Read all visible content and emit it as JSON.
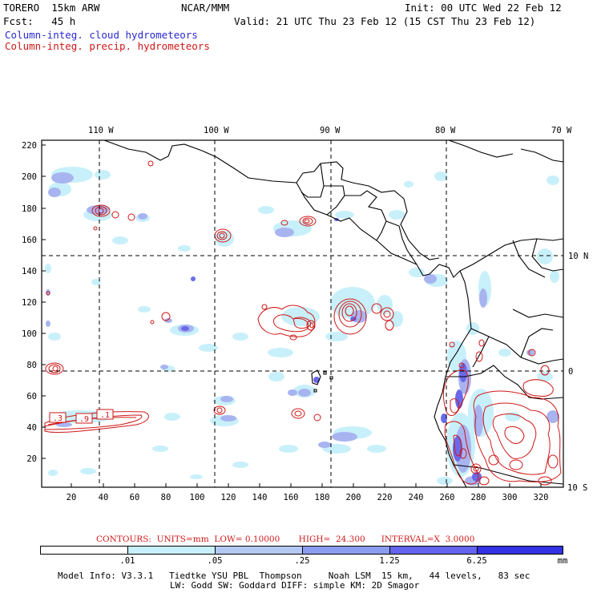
{
  "header": {
    "model": "TORERO  15km ARW",
    "center": "NCAR/MMM",
    "init": "Init: 00 UTC Wed 22 Feb 12",
    "fcst": "Fcst:   45 h",
    "valid": "Valid: 21 UTC Thu 23 Feb 12 (15 CST Thu 23 Feb 12)",
    "field_cloud": "Column-integ. cloud hydrometeors",
    "field_precip": "Column-integ. precip. hydrometeors"
  },
  "map": {
    "top_lon_labels": [
      "110 W",
      "100 W",
      "90 W",
      "80 W",
      "70 W"
    ],
    "right_lat_labels": [
      "10 N",
      "0",
      "10 S"
    ],
    "y_ticks": [
      "220",
      "200",
      "180",
      "160",
      "140",
      "120",
      "100",
      "80",
      "60",
      "40",
      "20"
    ],
    "x_ticks": [
      "20",
      "40",
      "60",
      "80",
      "100",
      "120",
      "140",
      "160",
      "180",
      "200",
      "220",
      "240",
      "260",
      "280",
      "300",
      "320"
    ],
    "contour_labels": [
      ".3",
      ".9",
      ".1"
    ],
    "colors": {
      "land_line": "#000000",
      "grid_dash": "#000000",
      "precip_contour": "#d01818",
      "cloud_light": "#c8f0fa",
      "cloud_mid": "#a8b4f0",
      "cloud_dark": "#6a6ae8"
    }
  },
  "footer": {
    "contours_line": "CONTOURS:  UNITS=mm  LOW= 0.10000       HIGH=  24.300      INTERVAL=X  3.0000",
    "colorbar_labels": [
      ".01",
      ".05",
      ".25",
      "1.25",
      "6.25"
    ],
    "colorbar_unit": "mm",
    "colorbar_colors": [
      "#ffffff",
      "#c8f0fa",
      "#b4c8f4",
      "#8c9cf0",
      "#6464ec",
      "#3232e4",
      "#1414dc"
    ],
    "info_line1": "Model Info: V3.3.1   Tiedtke YSU PBL  Thompson     Noah LSM  15 km,   44 levels,   83 sec",
    "info_line2": "LW: Godd SW: Goddard DIFF: simple KM: 2D Smagor"
  }
}
